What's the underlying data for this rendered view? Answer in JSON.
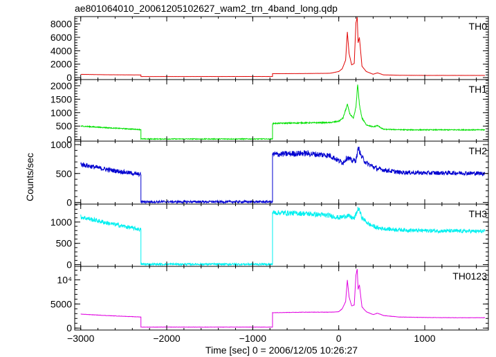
{
  "title": "ae801064010_20061205102627_wam2_trn_4band_long.qdp",
  "xlabel": "Time [sec] 0 = 2006/12/05 10:26:27",
  "ylabel": "Counts/sec",
  "chart_data": [
    {
      "type": "line",
      "panel": "TH0",
      "label": "TH0",
      "color": "#e00000",
      "xlim": [
        -3070,
        1740
      ],
      "ylim": [
        -300,
        9100
      ],
      "yticks": [
        {
          "value": 0,
          "label": "0"
        },
        {
          "value": 2000,
          "label": "2000"
        },
        {
          "value": 4000,
          "label": "4000"
        },
        {
          "value": 6000,
          "label": "6000"
        },
        {
          "value": 8000,
          "label": "8000"
        }
      ],
      "noise": 12,
      "x": [
        -3000,
        -2700,
        -2300,
        -2300,
        -770,
        -770,
        -400,
        -100,
        0,
        40,
        80,
        100,
        120,
        150,
        180,
        200,
        215,
        225,
        240,
        270,
        320,
        400,
        450,
        520,
        700,
        1000,
        1400,
        1700
      ],
      "y": [
        480,
        420,
        390,
        150,
        160,
        580,
        600,
        640,
        900,
        1300,
        2600,
        6800,
        3600,
        1900,
        2100,
        8200,
        9000,
        5200,
        6000,
        1700,
        900,
        500,
        700,
        400,
        340,
        320,
        320,
        320
      ]
    },
    {
      "type": "line",
      "panel": "TH1",
      "label": "TH1",
      "color": "#00e000",
      "xlim": [
        -3070,
        1740
      ],
      "ylim": [
        -60,
        2230
      ],
      "yticks": [
        {
          "value": 0,
          "label": "0"
        },
        {
          "value": 500,
          "label": "500"
        },
        {
          "value": 1000,
          "label": "1000"
        },
        {
          "value": 1500,
          "label": "1500"
        },
        {
          "value": 2000,
          "label": "2000"
        }
      ],
      "noise": 22,
      "x": [
        -3000,
        -2700,
        -2300,
        -2300,
        -770,
        -770,
        -400,
        -100,
        0,
        50,
        100,
        130,
        170,
        200,
        220,
        240,
        270,
        320,
        400,
        450,
        520,
        800,
        1200,
        1700
      ],
      "y": [
        500,
        440,
        370,
        20,
        20,
        600,
        620,
        630,
        680,
        800,
        1300,
        950,
        780,
        1200,
        2050,
        1300,
        800,
        550,
        470,
        520,
        380,
        360,
        360,
        360
      ]
    },
    {
      "type": "line",
      "panel": "TH2",
      "label": "TH2",
      "color": "#0000d0",
      "xlim": [
        -3070,
        1740
      ],
      "ylim": [
        -30,
        1060
      ],
      "yticks": [
        {
          "value": 0,
          "label": "0"
        },
        {
          "value": 500,
          "label": "500"
        },
        {
          "value": 1000,
          "label": "1000"
        }
      ],
      "noise": 28,
      "x": [
        -3000,
        -2700,
        -2300,
        -2300,
        -770,
        -770,
        -400,
        -100,
        0,
        50,
        100,
        150,
        200,
        230,
        260,
        320,
        450,
        700,
        1000,
        1400,
        1700
      ],
      "y": [
        660,
        570,
        480,
        10,
        10,
        830,
        850,
        810,
        720,
        690,
        780,
        720,
        730,
        950,
        800,
        680,
        580,
        520,
        510,
        510,
        500
      ]
    },
    {
      "type": "line",
      "panel": "TH3",
      "label": "TH3",
      "color": "#00f0f0",
      "xlim": [
        -3070,
        1740
      ],
      "ylim": [
        -40,
        1420
      ],
      "yticks": [
        {
          "value": 0,
          "label": "0"
        },
        {
          "value": 500,
          "label": "500"
        },
        {
          "value": 1000,
          "label": "1000"
        }
      ],
      "noise": 32,
      "x": [
        -3000,
        -2700,
        -2300,
        -2300,
        -770,
        -770,
        -400,
        -100,
        0,
        100,
        180,
        230,
        270,
        350,
        450,
        600,
        900,
        1300,
        1700
      ],
      "y": [
        1120,
        980,
        820,
        10,
        10,
        1220,
        1200,
        1150,
        1100,
        1150,
        1080,
        1330,
        1100,
        950,
        860,
        830,
        800,
        790,
        780
      ]
    },
    {
      "type": "line",
      "panel": "TH0123",
      "label": "TH0123",
      "color": "#e000e0",
      "xlim": [
        -3070,
        1740
      ],
      "ylim": [
        -400,
        12800
      ],
      "yticks": [
        {
          "value": 0,
          "label": "0"
        },
        {
          "value": 5000,
          "label": "5000"
        },
        {
          "value": 10000,
          "label": "10⁴"
        }
      ],
      "noise": 40,
      "x": [
        -3000,
        -2700,
        -2300,
        -2300,
        -770,
        -770,
        -400,
        -100,
        0,
        40,
        80,
        100,
        120,
        150,
        180,
        200,
        215,
        225,
        240,
        270,
        320,
        400,
        450,
        520,
        700,
        1000,
        1400,
        1700
      ],
      "y": [
        2900,
        2600,
        2300,
        200,
        200,
        3200,
        3300,
        3300,
        3400,
        4000,
        5500,
        10000,
        6500,
        4600,
        4800,
        11000,
        12300,
        8000,
        9000,
        4400,
        3400,
        2800,
        3100,
        2600,
        2300,
        2200,
        2150,
        2150
      ]
    }
  ],
  "xaxis": {
    "ticks": [
      {
        "value": -3000,
        "label": "−3000"
      },
      {
        "value": -2000,
        "label": "−2000"
      },
      {
        "value": -1000,
        "label": "−1000"
      },
      {
        "value": 0,
        "label": "0"
      },
      {
        "value": 1000,
        "label": "1000"
      }
    ],
    "minor_step": 200
  }
}
